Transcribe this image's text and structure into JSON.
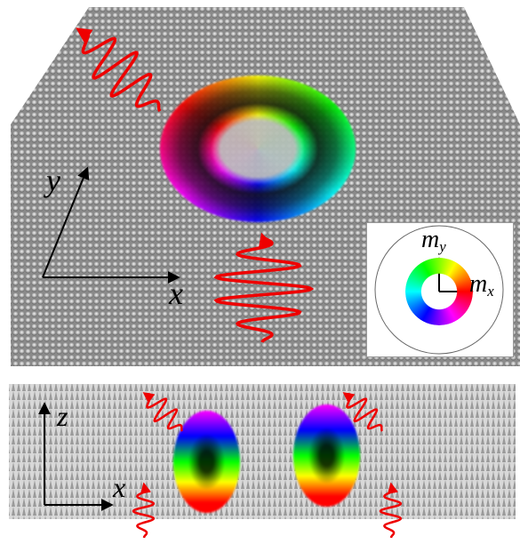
{
  "top_panel": {
    "y_label": "y",
    "x_label": "x"
  },
  "inset": {
    "my": {
      "base": "m",
      "sub": "y"
    },
    "mx": {
      "base": "m",
      "sub": "x"
    }
  },
  "bottom_panel": {
    "z_label": "z",
    "x_label": "x"
  }
}
